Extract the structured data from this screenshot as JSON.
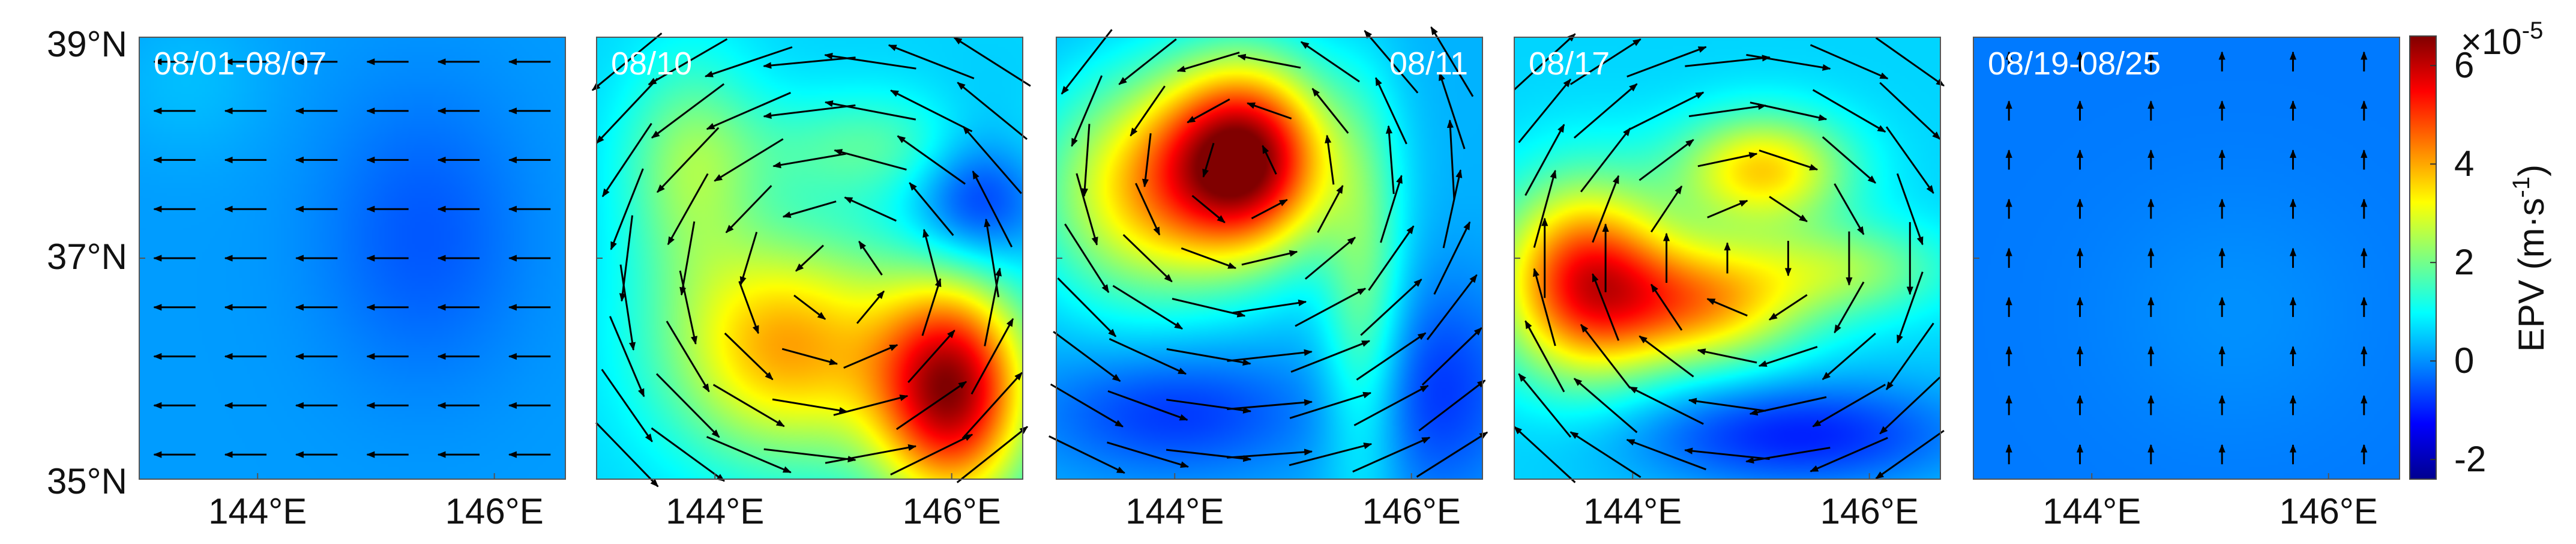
{
  "figure": {
    "x_tick_labels": [
      "144°E",
      "146°E"
    ],
    "y_tick_labels": [
      "39°N",
      "37°N",
      "35°N"
    ]
  },
  "colorbar": {
    "label": "EPV (m·s",
    "label_exp": "-1",
    "label_close": ")",
    "multiplier": "×10",
    "multiplier_exp": "-5",
    "ticks": [
      "6",
      "4",
      "2",
      "0",
      "-2"
    ],
    "tick_values": [
      6,
      4,
      2,
      0,
      -2
    ],
    "range": [
      -2.4,
      6.6
    ],
    "colormap": "jet"
  },
  "panels": [
    {
      "title": "08/01-08/07",
      "title_position": "left"
    },
    {
      "title": "08/10",
      "title_position": "left"
    },
    {
      "title": "08/11",
      "title_position": "right"
    },
    {
      "title": "08/17",
      "title_position": "left"
    },
    {
      "title": "08/19-08/25",
      "title_position": "left"
    }
  ],
  "chart_data": [
    {
      "type": "heatmap",
      "title": "08/01-08/07",
      "x_range": [
        143.0,
        146.6
      ],
      "y_range": [
        35.0,
        39.0
      ],
      "xticks": [
        144,
        146
      ],
      "yticks": [
        35,
        37,
        39
      ],
      "xtick_labels": [
        "144°E",
        "146°E"
      ],
      "ytick_labels": [
        "35°N",
        "37°N",
        "39°N"
      ],
      "value_unit": "×10^-5 m·s^-1",
      "background": 0.1,
      "blobs": [
        {
          "x": 145.4,
          "y": 37.2,
          "value": -0.5,
          "sx": 0.6,
          "sy": 0.9
        },
        {
          "x": 143.4,
          "y": 38.6,
          "value": 0.4,
          "sx": 0.5,
          "sy": 0.5
        }
      ],
      "vectors": {
        "pattern": "uniform",
        "u": -1.0,
        "v": 0.0,
        "rows": 9,
        "cols": 6,
        "length": 0.7
      }
    },
    {
      "type": "heatmap",
      "title": "08/10",
      "x_range": [
        143.0,
        146.6
      ],
      "y_range": [
        35.0,
        39.0
      ],
      "xticks": [
        144,
        146
      ],
      "xtick_labels": [
        "144°E",
        "146°E"
      ],
      "value_unit": "×10^-5 m·s^-1",
      "background": 0.6,
      "blobs": [
        {
          "x": 146.0,
          "y": 35.8,
          "value": 6.2,
          "sx": 0.45,
          "sy": 0.7
        },
        {
          "x": 144.6,
          "y": 36.2,
          "value": 4.0,
          "sx": 0.7,
          "sy": 0.7
        },
        {
          "x": 143.8,
          "y": 37.8,
          "value": 2.2,
          "sx": 0.4,
          "sy": 0.7
        },
        {
          "x": 145.5,
          "y": 38.0,
          "value": 1.8,
          "sx": 0.9,
          "sy": 0.35
        },
        {
          "x": 146.2,
          "y": 37.6,
          "value": -1.2,
          "sx": 0.4,
          "sy": 0.5
        }
      ],
      "vectors": {
        "pattern": "cyclonic",
        "cx": 145.0,
        "cy": 36.8,
        "rows": 9,
        "cols": 7,
        "length": 1.3
      }
    },
    {
      "type": "heatmap",
      "title": "08/11",
      "x_range": [
        143.0,
        146.6
      ],
      "y_range": [
        35.0,
        39.0
      ],
      "xticks": [
        144,
        146
      ],
      "xtick_labels": [
        "144°E",
        "146°E"
      ],
      "value_unit": "×10^-5 m·s^-1",
      "background": 0.3,
      "blobs": [
        {
          "x": 144.6,
          "y": 37.9,
          "value": 6.4,
          "sx": 0.5,
          "sy": 0.6
        },
        {
          "x": 143.7,
          "y": 37.6,
          "value": 3.2,
          "sx": 0.6,
          "sy": 0.7
        },
        {
          "x": 145.6,
          "y": 36.6,
          "value": 2.0,
          "sx": 0.25,
          "sy": 1.2
        },
        {
          "x": 144.0,
          "y": 35.6,
          "value": -0.8,
          "sx": 0.8,
          "sy": 0.4
        },
        {
          "x": 146.2,
          "y": 35.8,
          "value": -0.8,
          "sx": 0.5,
          "sy": 0.7
        }
      ],
      "vectors": {
        "pattern": "cyclonic",
        "cx": 144.6,
        "cy": 37.8,
        "rows": 9,
        "cols": 7,
        "length": 1.2
      }
    },
    {
      "type": "heatmap",
      "title": "08/17",
      "x_range": [
        143.0,
        146.6
      ],
      "y_range": [
        35.0,
        39.0
      ],
      "xticks": [
        144,
        146
      ],
      "xtick_labels": [
        "144°E",
        "146°E"
      ],
      "value_unit": "×10^-5 m·s^-1",
      "background": 0.6,
      "blobs": [
        {
          "x": 143.6,
          "y": 36.8,
          "value": 5.2,
          "sx": 0.5,
          "sy": 0.6
        },
        {
          "x": 144.6,
          "y": 36.6,
          "value": 3.8,
          "sx": 0.6,
          "sy": 0.4
        },
        {
          "x": 145.1,
          "y": 37.8,
          "value": 3.6,
          "sx": 0.5,
          "sy": 0.35
        },
        {
          "x": 145.8,
          "y": 36.9,
          "value": 2.2,
          "sx": 0.6,
          "sy": 0.3
        },
        {
          "x": 145.4,
          "y": 35.4,
          "value": -1.0,
          "sx": 1.0,
          "sy": 0.35
        }
      ],
      "vectors": {
        "pattern": "anticyclonic",
        "cx": 145.0,
        "cy": 37.0,
        "rows": 9,
        "cols": 7,
        "length": 1.2
      }
    },
    {
      "type": "heatmap",
      "title": "08/19-08/25",
      "x_range": [
        143.0,
        146.6
      ],
      "y_range": [
        35.0,
        39.0
      ],
      "xticks": [
        144,
        146
      ],
      "xtick_labels": [
        "144°E",
        "146°E"
      ],
      "value_unit": "×10^-5 m·s^-1",
      "background": -0.2,
      "blobs": [
        {
          "x": 145.2,
          "y": 36.5,
          "value": 0.0,
          "sx": 0.8,
          "sy": 0.8
        }
      ],
      "vectors": {
        "pattern": "uniform",
        "u": 0.0,
        "v": 1.0,
        "rows": 9,
        "cols": 6,
        "length": 0.35
      }
    }
  ]
}
